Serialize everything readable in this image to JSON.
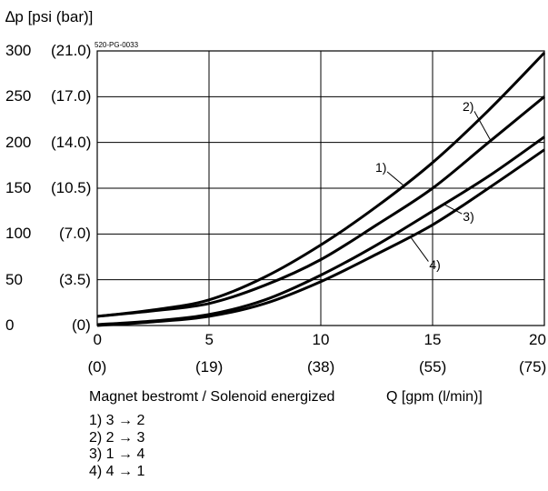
{
  "chart_data": {
    "type": "line",
    "code": "520-PG-0033",
    "ylabel": "∆p [psi (bar)]",
    "xlabel": "Q [gpm (l/min)]",
    "condition": "Magnet bestromt / Solenoid energized",
    "xlim": [
      0,
      20
    ],
    "ylim": [
      0,
      300
    ],
    "grid": true,
    "x_ticks": [
      {
        "value": 0,
        "primary": "0",
        "secondary": "(0)"
      },
      {
        "value": 5,
        "primary": "5",
        "secondary": "(19)"
      },
      {
        "value": 10,
        "primary": "10",
        "secondary": "(38)"
      },
      {
        "value": 15,
        "primary": "15",
        "secondary": "(55)"
      },
      {
        "value": 20,
        "primary": "20",
        "secondary": "(75)"
      }
    ],
    "y_ticks": [
      {
        "value": 0,
        "primary": "0",
        "secondary": "(0)"
      },
      {
        "value": 50,
        "primary": "50",
        "secondary": "(3.5)"
      },
      {
        "value": 100,
        "primary": "100",
        "secondary": "(7.0)"
      },
      {
        "value": 150,
        "primary": "150",
        "secondary": "(10.5)"
      },
      {
        "value": 200,
        "primary": "200",
        "secondary": "(14.0)"
      },
      {
        "value": 250,
        "primary": "250",
        "secondary": "(17.0)"
      },
      {
        "value": 300,
        "primary": "300",
        "secondary": "(21.0)"
      }
    ],
    "series": [
      {
        "name": "1)",
        "flow": "3 → 2",
        "x": [
          0,
          2.5,
          5,
          7.5,
          10,
          12.5,
          15,
          17.5,
          20
        ],
        "y": [
          10,
          17,
          28,
          53,
          88,
          130,
          178,
          235,
          298
        ],
        "label_at": [
          13.7,
          172
        ]
      },
      {
        "name": "2)",
        "flow": "2 → 3",
        "x": [
          0,
          2.5,
          5,
          7.5,
          10,
          12.5,
          15,
          17.5,
          20
        ],
        "y": [
          10,
          16,
          24,
          44,
          72,
          110,
          150,
          200,
          250
        ],
        "label_at": [
          17.6,
          238
        ]
      },
      {
        "name": "3)",
        "flow": "1 → 4",
        "x": [
          0,
          2.5,
          5,
          7.5,
          10,
          12.5,
          15,
          17.5,
          20
        ],
        "y": [
          1,
          5,
          12,
          28,
          55,
          88,
          125,
          163,
          206
        ],
        "label_at": [
          15.5,
          118
        ]
      },
      {
        "name": "4)",
        "flow": "4 → 1",
        "x": [
          0,
          2.5,
          5,
          7.5,
          10,
          12.5,
          15,
          17.5,
          20
        ],
        "y": [
          0,
          4,
          10,
          24,
          48,
          78,
          110,
          150,
          192
        ],
        "label_at": [
          14.0,
          66
        ]
      }
    ]
  }
}
